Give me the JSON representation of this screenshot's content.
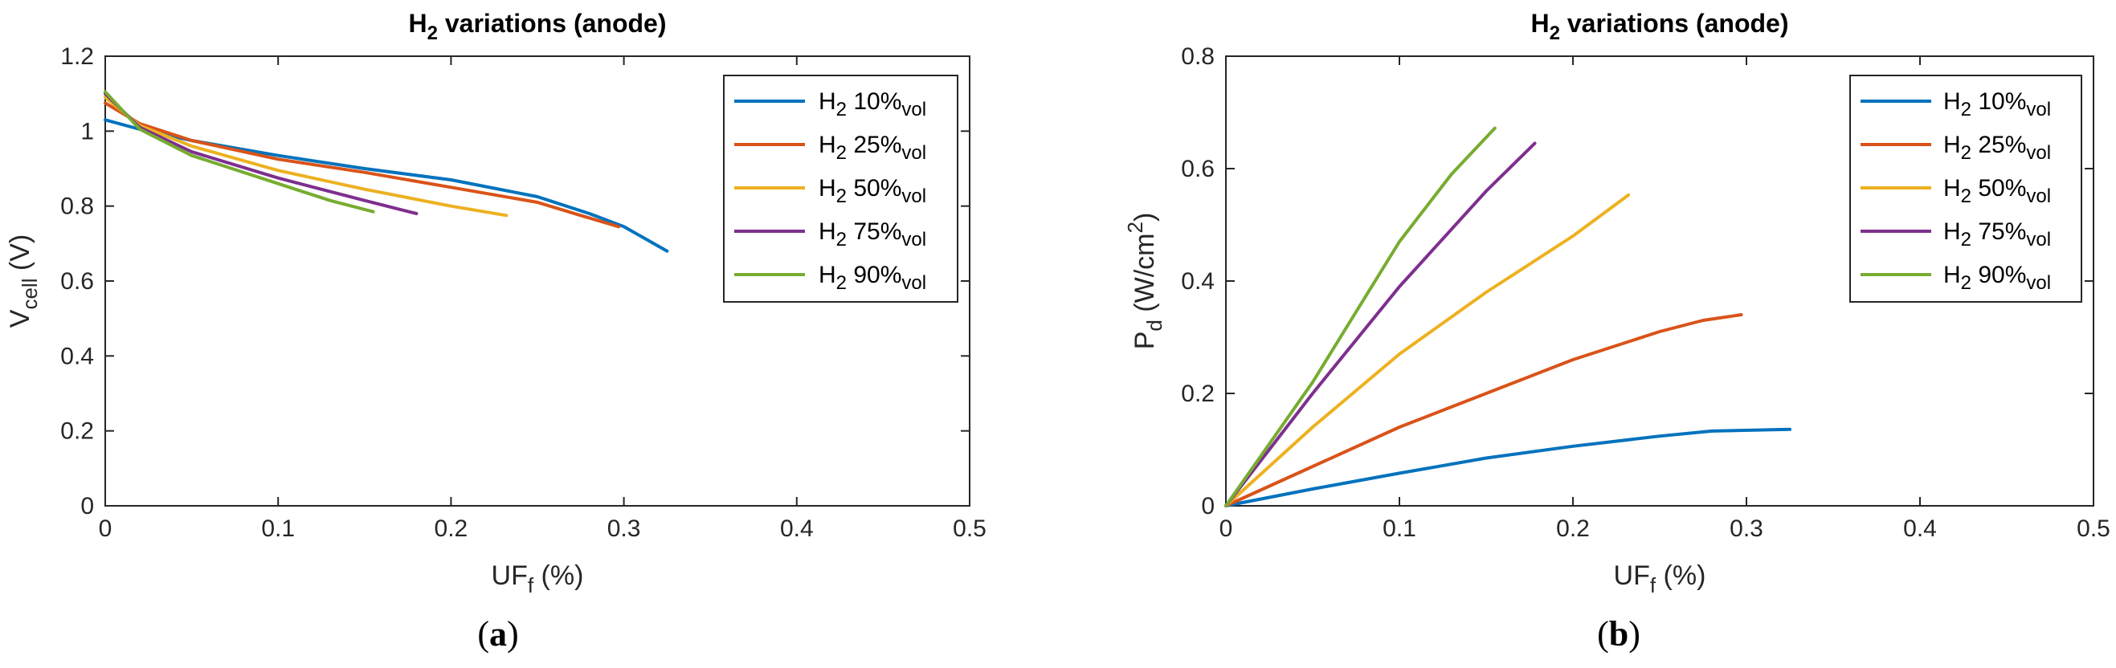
{
  "chart_data": [
    {
      "type": "line",
      "title": {
        "main": "H",
        "sub": "2",
        "rest": " variations (anode)"
      },
      "xlabel": {
        "main": "UF",
        "sub": "f",
        "rest": " (%)"
      },
      "ylabel": {
        "main": "V",
        "sub": "cell",
        "rest": " (V)"
      },
      "xlim": [
        0,
        0.5
      ],
      "ylim": [
        0,
        1.2
      ],
      "xticks": [
        0,
        0.1,
        0.2,
        0.3,
        0.4,
        0.5
      ],
      "xtick_labels": [
        "0",
        "0.1",
        "0.2",
        "0.3",
        "0.4",
        "0.5"
      ],
      "yticks": [
        0,
        0.2,
        0.4,
        0.6,
        0.8,
        1,
        1.2
      ],
      "ytick_labels": [
        "0",
        "0.2",
        "0.4",
        "0.6",
        "0.8",
        "1",
        "1.2"
      ],
      "grid": false,
      "legend_position": "top-right",
      "panel_label": {
        "open": "(",
        "letter": "a",
        "close": ")"
      },
      "series": [
        {
          "name": "H2 10%vol",
          "legend": {
            "pre": "H",
            "sub1": "2",
            "mid": " 10%",
            "sub2": "vol"
          },
          "color": "#0072BD",
          "points": [
            [
              0,
              1.03
            ],
            [
              0.02,
              1.005
            ],
            [
              0.05,
              0.975
            ],
            [
              0.1,
              0.935
            ],
            [
              0.15,
              0.9
            ],
            [
              0.2,
              0.87
            ],
            [
              0.25,
              0.825
            ],
            [
              0.28,
              0.78
            ],
            [
              0.3,
              0.745
            ],
            [
              0.325,
              0.68
            ]
          ]
        },
        {
          "name": "H2 25%vol",
          "legend": {
            "pre": "H",
            "sub1": "2",
            "mid": " 25%",
            "sub2": "vol"
          },
          "color": "#D95319",
          "points": [
            [
              0,
              1.075
            ],
            [
              0.02,
              1.02
            ],
            [
              0.05,
              0.975
            ],
            [
              0.1,
              0.925
            ],
            [
              0.15,
              0.89
            ],
            [
              0.2,
              0.85
            ],
            [
              0.25,
              0.81
            ],
            [
              0.275,
              0.775
            ],
            [
              0.297,
              0.745
            ]
          ]
        },
        {
          "name": "H2 50%vol",
          "legend": {
            "pre": "H",
            "sub1": "2",
            "mid": " 50%",
            "sub2": "vol"
          },
          "color": "#EDB120",
          "points": [
            [
              0,
              1.09
            ],
            [
              0.02,
              1.015
            ],
            [
              0.05,
              0.96
            ],
            [
              0.1,
              0.895
            ],
            [
              0.15,
              0.845
            ],
            [
              0.2,
              0.8
            ],
            [
              0.232,
              0.775
            ]
          ]
        },
        {
          "name": "H2 75%vol",
          "legend": {
            "pre": "H",
            "sub1": "2",
            "mid": " 75%",
            "sub2": "vol"
          },
          "color": "#7E2F8E",
          "points": [
            [
              0,
              1.1
            ],
            [
              0.02,
              1.01
            ],
            [
              0.05,
              0.945
            ],
            [
              0.1,
              0.875
            ],
            [
              0.15,
              0.815
            ],
            [
              0.18,
              0.78
            ]
          ]
        },
        {
          "name": "H2 90%vol",
          "legend": {
            "pre": "H",
            "sub1": "2",
            "mid": " 90%",
            "sub2": "vol"
          },
          "color": "#77AC30",
          "points": [
            [
              0,
              1.105
            ],
            [
              0.02,
              1.005
            ],
            [
              0.05,
              0.935
            ],
            [
              0.1,
              0.86
            ],
            [
              0.13,
              0.815
            ],
            [
              0.155,
              0.785
            ]
          ]
        }
      ]
    },
    {
      "type": "line",
      "title": {
        "main": "H",
        "sub": "2",
        "rest": " variations (anode)"
      },
      "xlabel": {
        "main": "UF",
        "sub": "f",
        "rest": " (%)"
      },
      "ylabel": {
        "main": "P",
        "sub": "d",
        "rest": " (W/cm",
        "sup": "2",
        "end": ")"
      },
      "xlim": [
        0,
        0.5
      ],
      "ylim": [
        0,
        0.8
      ],
      "xticks": [
        0,
        0.1,
        0.2,
        0.3,
        0.4,
        0.5
      ],
      "xtick_labels": [
        "0",
        "0.1",
        "0.2",
        "0.3",
        "0.4",
        "0.5"
      ],
      "yticks": [
        0,
        0.2,
        0.4,
        0.6,
        0.8
      ],
      "ytick_labels": [
        "0",
        "0.2",
        "0.4",
        "0.6",
        "0.8"
      ],
      "grid": false,
      "legend_position": "top-right",
      "panel_label": {
        "open": "(",
        "letter": "b",
        "close": ")"
      },
      "series": [
        {
          "name": "H2 10%vol",
          "legend": {
            "pre": "H",
            "sub1": "2",
            "mid": " 10%",
            "sub2": "vol"
          },
          "color": "#0072BD",
          "points": [
            [
              0,
              0
            ],
            [
              0.05,
              0.03
            ],
            [
              0.1,
              0.058
            ],
            [
              0.15,
              0.085
            ],
            [
              0.2,
              0.106
            ],
            [
              0.25,
              0.124
            ],
            [
              0.28,
              0.133
            ],
            [
              0.325,
              0.136
            ]
          ]
        },
        {
          "name": "H2 25%vol",
          "legend": {
            "pre": "H",
            "sub1": "2",
            "mid": " 25%",
            "sub2": "vol"
          },
          "color": "#D95319",
          "points": [
            [
              0,
              0
            ],
            [
              0.05,
              0.07
            ],
            [
              0.1,
              0.14
            ],
            [
              0.15,
              0.2
            ],
            [
              0.2,
              0.26
            ],
            [
              0.25,
              0.31
            ],
            [
              0.275,
              0.33
            ],
            [
              0.297,
              0.34
            ]
          ]
        },
        {
          "name": "H2 50%vol",
          "legend": {
            "pre": "H",
            "sub1": "2",
            "mid": " 50%",
            "sub2": "vol"
          },
          "color": "#EDB120",
          "points": [
            [
              0,
              0
            ],
            [
              0.05,
              0.14
            ],
            [
              0.1,
              0.27
            ],
            [
              0.15,
              0.38
            ],
            [
              0.2,
              0.48
            ],
            [
              0.232,
              0.553
            ]
          ]
        },
        {
          "name": "H2 75%vol",
          "legend": {
            "pre": "H",
            "sub1": "2",
            "mid": " 75%",
            "sub2": "vol"
          },
          "color": "#7E2F8E",
          "points": [
            [
              0,
              0
            ],
            [
              0.05,
              0.2
            ],
            [
              0.1,
              0.39
            ],
            [
              0.15,
              0.56
            ],
            [
              0.178,
              0.645
            ]
          ]
        },
        {
          "name": "H2 90%vol",
          "legend": {
            "pre": "H",
            "sub1": "2",
            "mid": " 90%",
            "sub2": "vol"
          },
          "color": "#77AC30",
          "points": [
            [
              0,
              0
            ],
            [
              0.05,
              0.22
            ],
            [
              0.1,
              0.47
            ],
            [
              0.13,
              0.59
            ],
            [
              0.155,
              0.672
            ]
          ]
        }
      ]
    }
  ]
}
